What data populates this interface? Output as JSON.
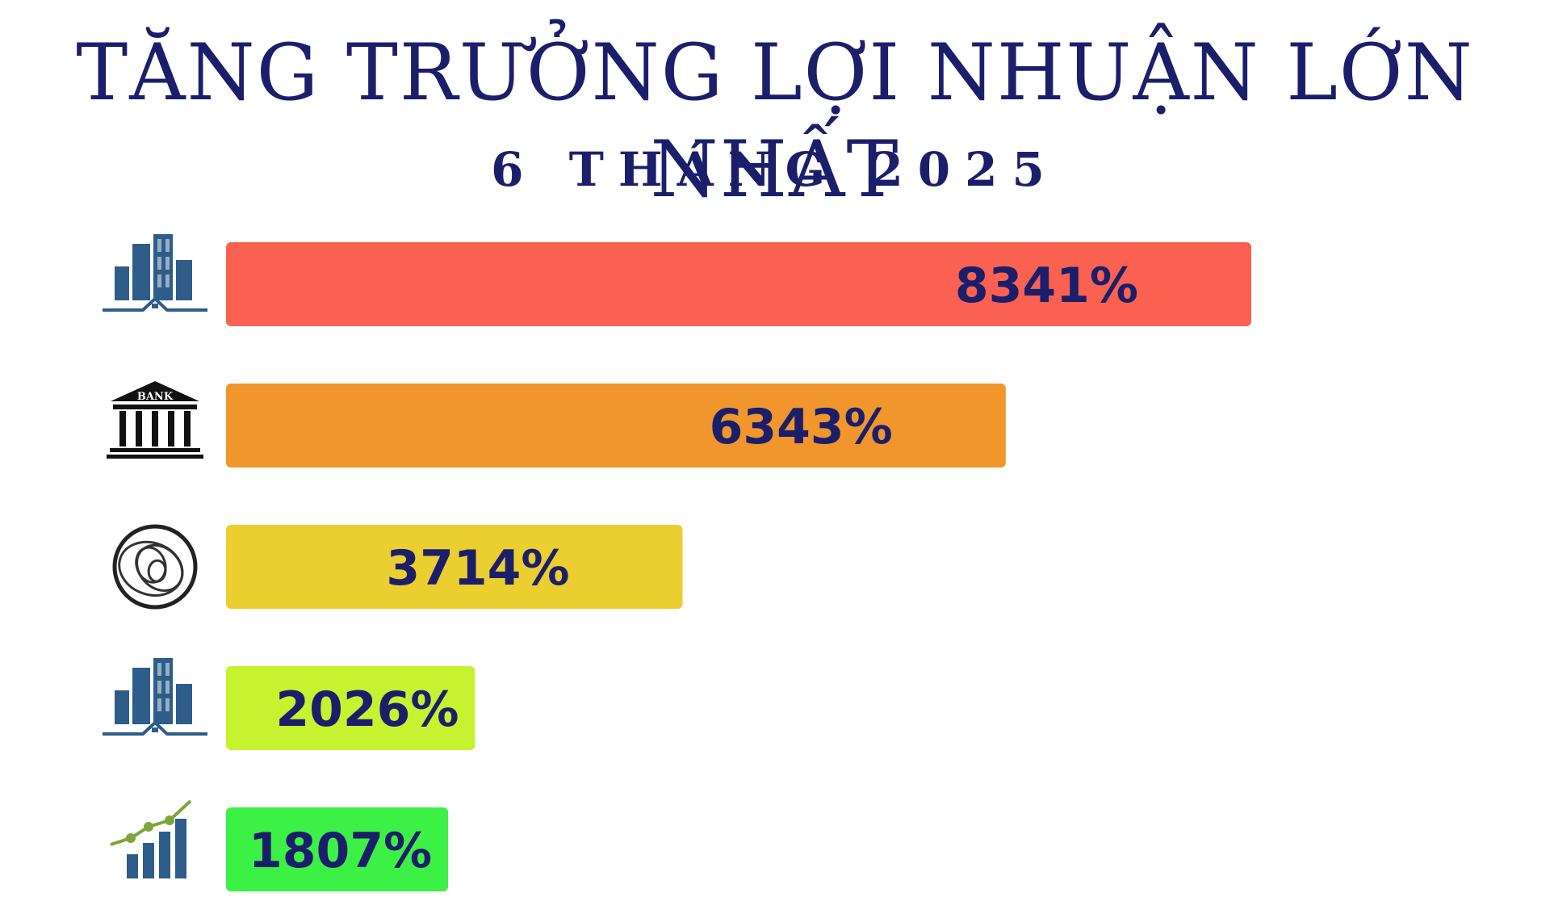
{
  "title": "TĂNG TRƯỞNG LỢI NHUẬN LỚN NHẤT",
  "subtitle": "6 THÁNG 2025",
  "colors": {
    "text": "#1b1f6b",
    "icon": "#2d5d88"
  },
  "chart_data": {
    "type": "bar",
    "orientation": "horizontal",
    "title": "TĂNG TRƯỞNG LỢI NHUẬN LỚN NHẤT",
    "subtitle": "6 THÁNG 2025",
    "xlabel": "",
    "ylabel": "",
    "grid": false,
    "legend": "none",
    "xlim": [
      0,
      10000
    ],
    "bars": [
      {
        "value": 8341,
        "label": "8341%",
        "color": "#fb6150",
        "icon": "city-buildings-icon"
      },
      {
        "value": 6343,
        "label": "6343%",
        "color": "#f0962c",
        "icon": "bank-icon"
      },
      {
        "value": 3714,
        "label": "3714%",
        "color": "#ebce30",
        "icon": "wood-ring-icon"
      },
      {
        "value": 2026,
        "label": "2026%",
        "color": "#c6f230",
        "icon": "city-buildings-icon"
      },
      {
        "value": 1807,
        "label": "1807%",
        "color": "#3df046",
        "icon": "growth-chart-icon"
      }
    ]
  }
}
